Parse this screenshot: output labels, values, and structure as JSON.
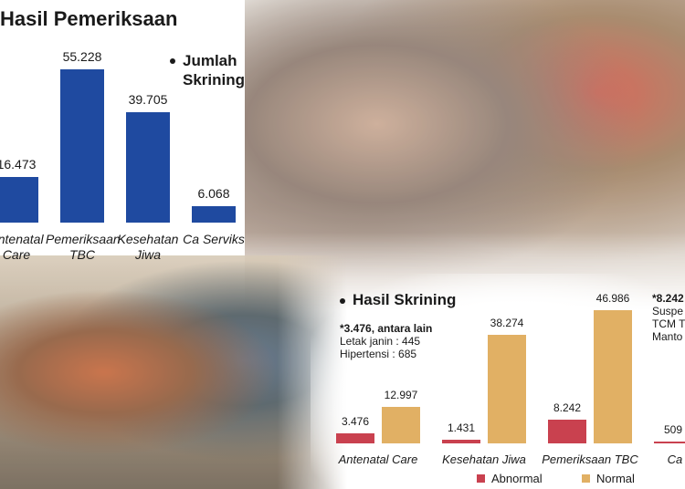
{
  "chart_data": [
    {
      "type": "bar",
      "title": "Hasil Pemeriksaan",
      "categories": [
        "Antenatal Care",
        "Pemeriksaan TBC",
        "Kesehatan Jiwa",
        "Ca Serviks"
      ],
      "series": [
        {
          "name": "Jumlah Skrining",
          "color": "#1f4aa0",
          "values": [
            16473,
            55228,
            39705,
            6068
          ],
          "value_labels": [
            "16.473",
            "55.228",
            "39.705",
            "6.068"
          ]
        }
      ]
    },
    {
      "type": "grouped-bar",
      "title": "Hasil Skrining",
      "categories": [
        "Antenatal Care",
        "Kesehatan Jiwa",
        "Pemeriksaan TBC",
        "Ca Serviks"
      ],
      "series": [
        {
          "name": "Abnormal",
          "color": "#c9414f",
          "values": [
            3476,
            1431,
            8242,
            509
          ],
          "value_labels": [
            "3.476",
            "1.431",
            "8.242",
            "509"
          ]
        },
        {
          "name": "Normal",
          "color": "#e1b064",
          "values": [
            12997,
            38274,
            46986,
            null
          ],
          "value_labels": [
            "12.997",
            "38.274",
            "46.986",
            null
          ]
        }
      ],
      "annotations": [
        [
          "*3.476, antara lain",
          "Letak janin : 445",
          "Hipertensi : 685"
        ],
        [
          "*8.242",
          "Suspe",
          "TCM T",
          "Manto"
        ]
      ]
    }
  ]
}
